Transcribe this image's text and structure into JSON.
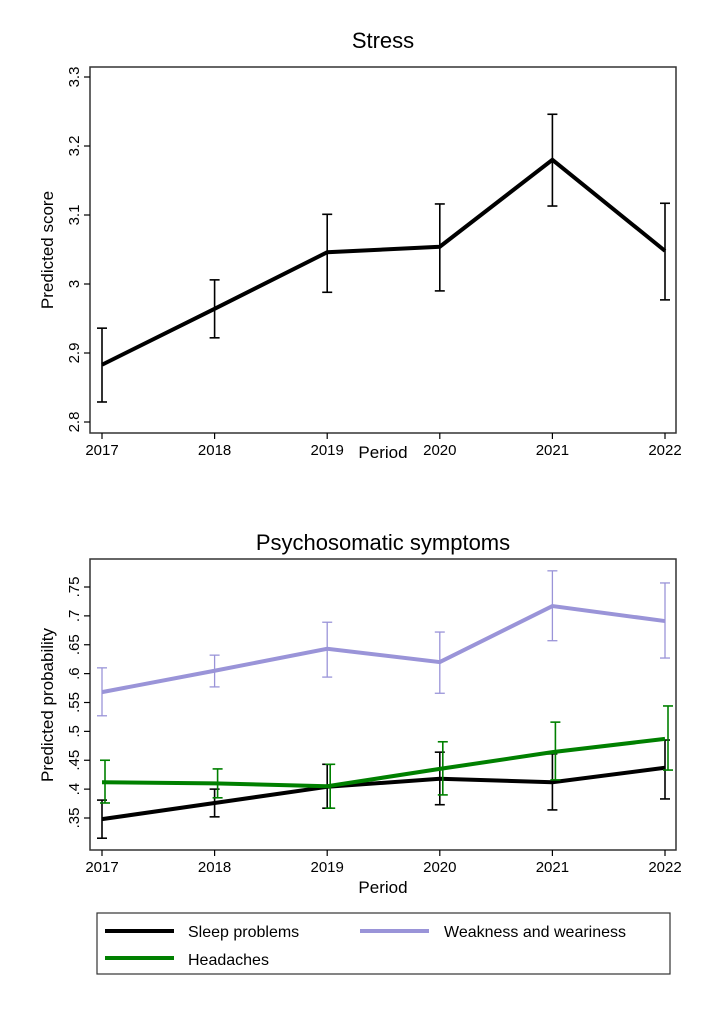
{
  "chart_data": [
    {
      "type": "line",
      "title": "Stress",
      "xlabel": "Period",
      "ylabel": "Predicted score",
      "x": [
        2017,
        2018,
        2019,
        2020,
        2021,
        2022
      ],
      "ylim": [
        2.8,
        3.3
      ],
      "yticks": [
        "2.8",
        "2.9",
        "3",
        "3.1",
        "3.2",
        "3.3"
      ],
      "ytick_values": [
        2.8,
        2.9,
        3.0,
        3.1,
        3.2,
        3.3
      ],
      "grid": false,
      "series": [
        {
          "name": "Stress",
          "color": "#000000",
          "values": [
            2.883,
            2.964,
            3.046,
            3.054,
            3.18,
            3.048
          ],
          "ci_low": [
            2.829,
            2.922,
            2.988,
            2.99,
            3.113,
            2.977
          ],
          "ci_high": [
            2.936,
            3.006,
            3.101,
            3.116,
            3.246,
            3.117
          ]
        }
      ]
    },
    {
      "type": "line",
      "title": "Psychosomatic symptoms",
      "xlabel": "Period",
      "ylabel": "Predicted probability",
      "x": [
        2017,
        2018,
        2019,
        2020,
        2021,
        2022
      ],
      "ylim": [
        0.35,
        0.75
      ],
      "yticks": [
        ".35",
        ".4",
        ".45",
        ".5",
        ".55",
        ".6",
        ".65",
        ".7",
        ".75"
      ],
      "ytick_values": [
        0.35,
        0.4,
        0.45,
        0.5,
        0.55,
        0.6,
        0.65,
        0.7,
        0.75
      ],
      "grid": false,
      "legend_position": "bottom",
      "series": [
        {
          "name": "Sleep problems",
          "color": "#000000",
          "values": [
            0.348,
            0.376,
            0.404,
            0.418,
            0.412,
            0.437
          ],
          "ci_low": [
            0.315,
            0.352,
            0.367,
            0.373,
            0.364,
            0.383
          ],
          "ci_high": [
            0.381,
            0.4,
            0.443,
            0.464,
            0.461,
            0.485
          ]
        },
        {
          "name": "Weakness and weariness",
          "color": "#9a94d8",
          "values": [
            0.568,
            0.605,
            0.643,
            0.62,
            0.717,
            0.691
          ],
          "ci_low": [
            0.527,
            0.577,
            0.594,
            0.566,
            0.657,
            0.627
          ],
          "ci_high": [
            0.61,
            0.632,
            0.689,
            0.672,
            0.778,
            0.757
          ]
        },
        {
          "name": "Headaches",
          "color": "#008000",
          "values": [
            0.412,
            0.41,
            0.405,
            0.435,
            0.464,
            0.487
          ],
          "ci_low": [
            0.376,
            0.385,
            0.367,
            0.39,
            0.416,
            0.433
          ],
          "ci_high": [
            0.45,
            0.435,
            0.443,
            0.482,
            0.516,
            0.544
          ]
        }
      ]
    }
  ]
}
